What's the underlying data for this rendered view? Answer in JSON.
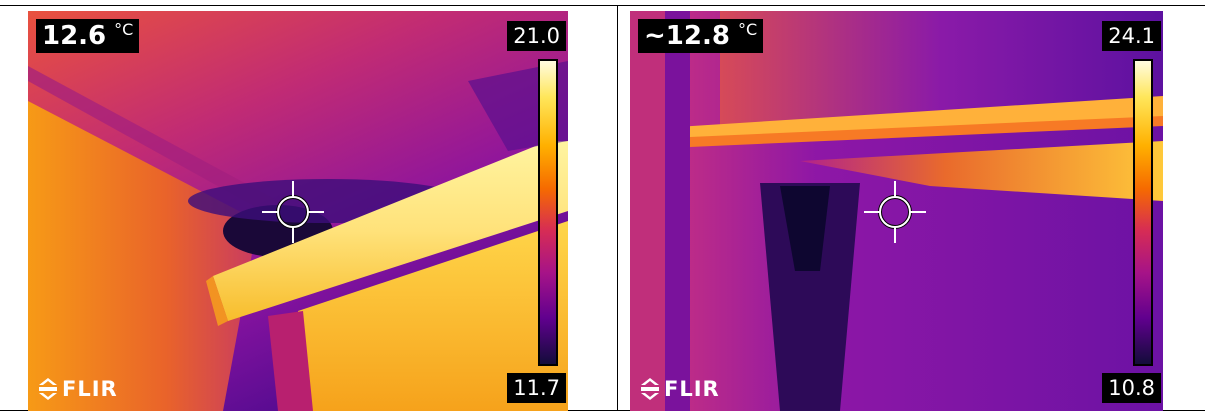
{
  "left_image": {
    "spot_temperature": "12.6",
    "unit": "°C",
    "scale_max": "21.0",
    "scale_min": "11.7",
    "brand": "FLIR"
  },
  "right_image": {
    "spot_temperature": "~12.8",
    "unit": "°C",
    "scale_max": "24.1",
    "scale_min": "10.8",
    "brand": "FLIR"
  },
  "palette": {
    "hot": "#fff9c8",
    "warm": "#ffb000",
    "mid": "#f56a00",
    "cool": "#b0158a",
    "cold": "#1b0a3a"
  }
}
